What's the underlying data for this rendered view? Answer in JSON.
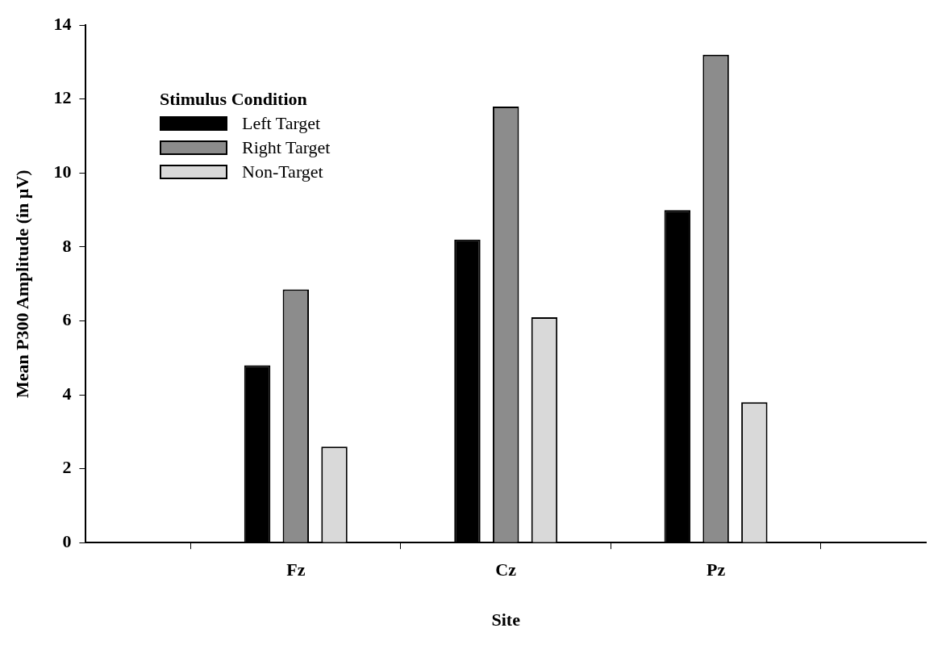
{
  "chart_data": {
    "type": "bar",
    "xlabel": "Site",
    "ylabel": "Mean P300 Amplitude (in µV)",
    "legend_title": "Stimulus Condition",
    "legend": "top left",
    "categories": [
      "Fz",
      "Cz",
      "Pz"
    ],
    "series": [
      {
        "name": "Left Target",
        "color": "#000000",
        "values": [
          4.8,
          8.2,
          9.0
        ]
      },
      {
        "name": "Right Target",
        "color": "#8c8c8c",
        "values": [
          6.85,
          11.8,
          13.2
        ]
      },
      {
        "name": "Non-Target",
        "color": "#d9d9d9",
        "values": [
          2.6,
          6.1,
          3.8
        ]
      }
    ],
    "ylim": [
      0,
      14
    ],
    "yticks": [
      0,
      2,
      4,
      6,
      8,
      10,
      12,
      14
    ]
  }
}
